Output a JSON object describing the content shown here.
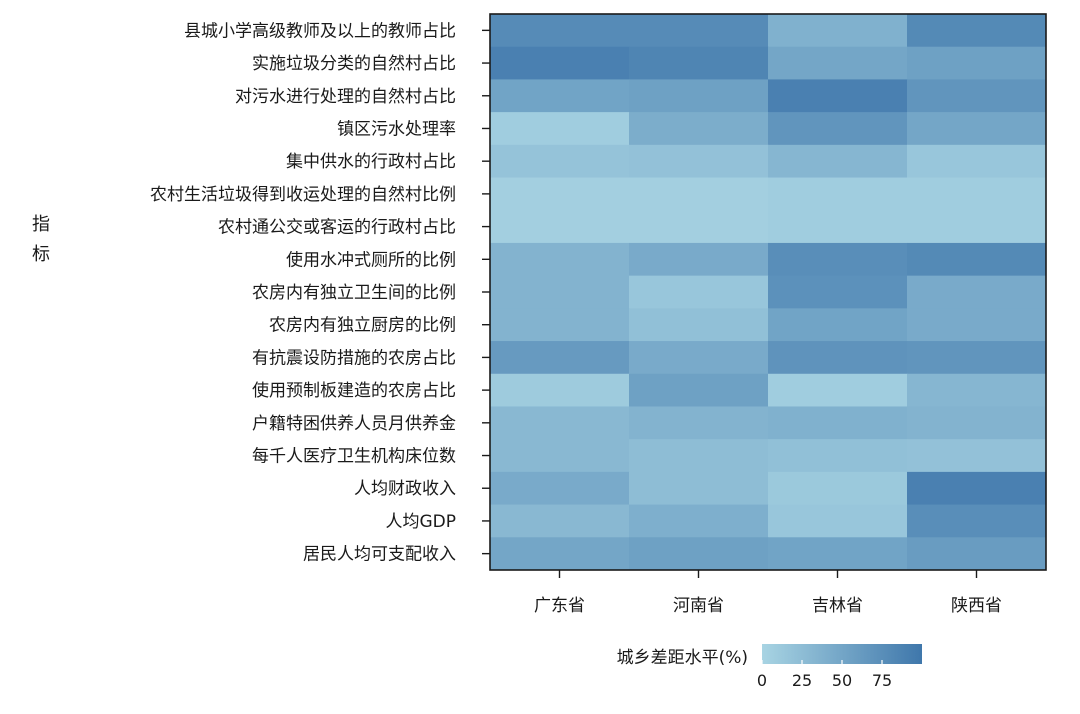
{
  "chart_data": {
    "type": "heatmap",
    "title": "",
    "ylabel": "指标",
    "xlabel": "",
    "x_categories": [
      "广东省",
      "河南省",
      "吉林省",
      "陕西省"
    ],
    "y_categories": [
      "县城小学高级教师及以上的教师占比",
      "实施垃圾分类的自然村占比",
      "对污水进行处理的自然村占比",
      "镇区污水处理率",
      "集中供水的行政村占比",
      "农村生活垃圾得到收运处理的自然村比例",
      "农村通公交或客运的行政村占比",
      "使用水冲式厕所的比例",
      "农房内有独立卫生间的比例",
      "农房内有独立厨房的比例",
      "有抗震设防措施的农房占比",
      "使用预制板建造的农房占比",
      "户籍特困供养人员月供养金",
      "每千人医疗卫生机构床位数",
      "人均财政收入",
      "人均GDP",
      "居民人均可支配收入"
    ],
    "values": [
      [
        78,
        78,
        38,
        80
      ],
      [
        90,
        85,
        50,
        55
      ],
      [
        52,
        55,
        90,
        68
      ],
      [
        8,
        42,
        68,
        50
      ],
      [
        18,
        20,
        32,
        15
      ],
      [
        5,
        5,
        8,
        8
      ],
      [
        5,
        5,
        8,
        8
      ],
      [
        35,
        45,
        75,
        80
      ],
      [
        35,
        15,
        72,
        45
      ],
      [
        35,
        22,
        52,
        45
      ],
      [
        62,
        45,
        70,
        68
      ],
      [
        10,
        55,
        8,
        32
      ],
      [
        30,
        35,
        38,
        35
      ],
      [
        30,
        25,
        22,
        20
      ],
      [
        45,
        25,
        12,
        90
      ],
      [
        30,
        40,
        15,
        75
      ],
      [
        50,
        55,
        52,
        60
      ]
    ],
    "colorbar": {
      "label": "城乡差距水平(%)",
      "ticks": [
        0,
        25,
        50,
        75
      ],
      "range": [
        0,
        100
      ],
      "low_color": "#a8d4e3",
      "high_color": "#3f77ab"
    },
    "legend_position": "bottom"
  }
}
